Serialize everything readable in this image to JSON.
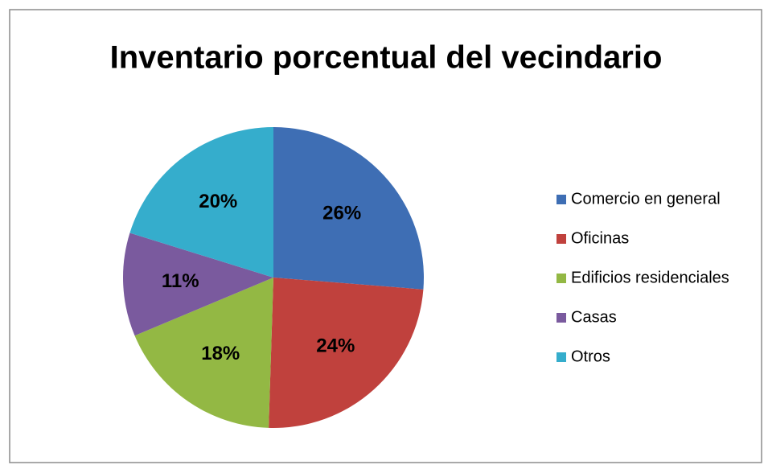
{
  "chart_data": {
    "type": "pie",
    "title": "Inventario porcentual del vecindario",
    "categories": [
      "Comercio en general",
      "Oficinas",
      "Edificios residenciales",
      "Casas",
      "Otros"
    ],
    "values": [
      26,
      24,
      18,
      11,
      20
    ],
    "value_labels": [
      "26%",
      "24%",
      "18%",
      "11%",
      "20%"
    ],
    "colors": [
      "#3e6eb4",
      "#c0413d",
      "#93b844",
      "#7a5a9e",
      "#35adcc"
    ],
    "legend": "right"
  }
}
